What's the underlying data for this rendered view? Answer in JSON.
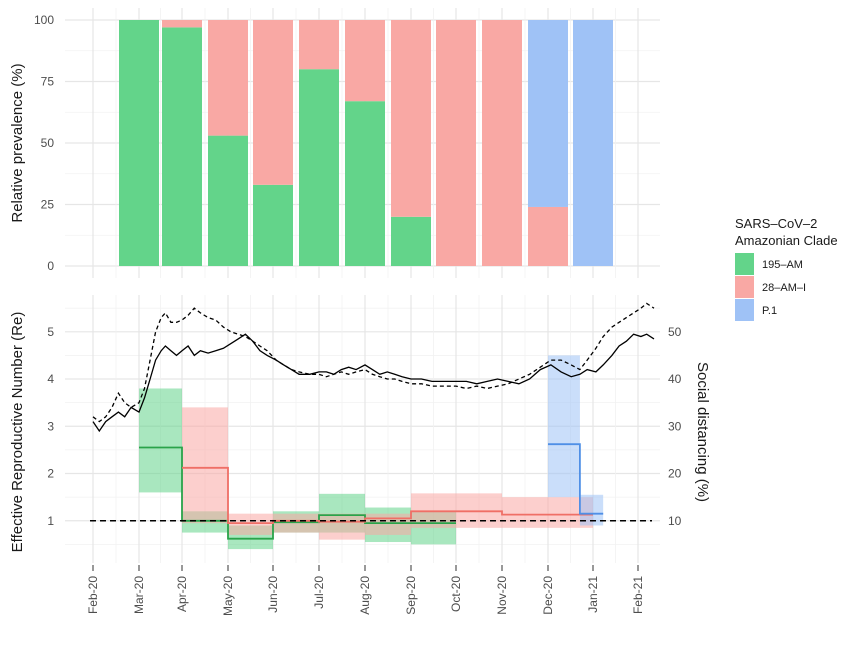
{
  "chart_data": [
    {
      "type": "bar",
      "panel": "top",
      "stacked": true,
      "ylabel": "Relative prevalence (%)",
      "ylim": [
        0,
        100
      ],
      "yticks": [
        0,
        25,
        50,
        75,
        100
      ],
      "categories": [
        "Mar-20",
        "Apr-20",
        "May-20",
        "Jun-20",
        "Jul-20",
        "Aug-20",
        "Sep-20",
        "Oct-20",
        "Nov-20",
        "Dec-20",
        "Jan-21"
      ],
      "series": [
        {
          "name": "195–AM",
          "color": "#63d48a",
          "values": [
            100,
            97,
            53,
            33,
            80,
            67,
            20,
            0,
            0,
            0,
            0
          ]
        },
        {
          "name": "28–AM–I",
          "color": "#f9a8a4",
          "values": [
            0,
            3,
            47,
            67,
            20,
            33,
            80,
            100,
            100,
            24,
            0
          ]
        },
        {
          "name": "P.1",
          "color": "#9fc2f6",
          "values": [
            0,
            0,
            0,
            0,
            0,
            0,
            0,
            0,
            0,
            76,
            100
          ]
        }
      ],
      "grid": true,
      "legend": {
        "title_line1": "SARS–CoV–2",
        "title_line2": "Amazonian Clade",
        "placement": "right",
        "entries": [
          "195–AM",
          "28–AM–I",
          "P.1"
        ]
      }
    },
    {
      "type": "line",
      "panel": "bottom",
      "ylabel": "Effective Reproductive Number (Re)",
      "ylabel_right": "Social distancing (%)",
      "ylim": [
        0,
        5.8
      ],
      "yticks": [
        1,
        2,
        3,
        4,
        5
      ],
      "ylim_right": [
        0,
        58
      ],
      "yticks_right": [
        10,
        20,
        30,
        40,
        50
      ],
      "xticks": [
        "Feb-20",
        "Mar-20",
        "Apr-20",
        "May-20",
        "Jun-20",
        "Jul-20",
        "Aug-20",
        "Sep-20",
        "Oct-20",
        "Nov-20",
        "Dec-20",
        "Jan-21",
        "Feb-21"
      ],
      "reference_line": {
        "y": 1,
        "style": "dashed"
      },
      "re_series": [
        {
          "name": "195–AM",
          "color": "#2aa34a",
          "band_color": "#63d48a",
          "segments": [
            {
              "start": "2020-03-01",
              "end": "2020-04-01",
              "re": 2.55,
              "lo": 1.6,
              "hi": 3.8
            },
            {
              "start": "2020-04-01",
              "end": "2020-05-01",
              "re": 1.0,
              "lo": 0.75,
              "hi": 1.2
            },
            {
              "start": "2020-05-01",
              "end": "2020-06-01",
              "re": 0.62,
              "lo": 0.4,
              "hi": 0.9
            },
            {
              "start": "2020-06-01",
              "end": "2020-07-01",
              "re": 0.97,
              "lo": 0.75,
              "hi": 1.2
            },
            {
              "start": "2020-07-01",
              "end": "2020-08-01",
              "re": 1.12,
              "lo": 0.75,
              "hi": 1.57
            },
            {
              "start": "2020-08-01",
              "end": "2020-09-01",
              "re": 0.95,
              "lo": 0.55,
              "hi": 1.28
            },
            {
              "start": "2020-09-01",
              "end": "2020-10-01",
              "re": 0.95,
              "lo": 0.5,
              "hi": 1.2
            }
          ]
        },
        {
          "name": "28–AM–I",
          "color": "#ef6f66",
          "band_color": "#f9a8a4",
          "segments": [
            {
              "start": "2020-04-01",
              "end": "2020-05-01",
              "re": 2.12,
              "lo": 0.95,
              "hi": 3.4
            },
            {
              "start": "2020-05-01",
              "end": "2020-06-01",
              "re": 0.95,
              "lo": 0.7,
              "hi": 1.15
            },
            {
              "start": "2020-06-01",
              "end": "2020-07-01",
              "re": 1.0,
              "lo": 0.75,
              "hi": 1.15
            },
            {
              "start": "2020-07-01",
              "end": "2020-08-01",
              "re": 0.98,
              "lo": 0.6,
              "hi": 1.15
            },
            {
              "start": "2020-08-01",
              "end": "2020-09-01",
              "re": 1.05,
              "lo": 0.7,
              "hi": 1.15
            },
            {
              "start": "2020-09-01",
              "end": "2020-11-01",
              "re": 1.2,
              "lo": 0.85,
              "hi": 1.58
            },
            {
              "start": "2020-11-01",
              "end": "2021-01-01",
              "re": 1.13,
              "lo": 0.85,
              "hi": 1.5
            }
          ]
        },
        {
          "name": "P.1",
          "color": "#4f8fe6",
          "band_color": "#9fc2f6",
          "segments": [
            {
              "start": "2020-12-01",
              "end": "2020-12-23",
              "re": 2.62,
              "lo": 1.5,
              "hi": 4.5
            },
            {
              "start": "2020-12-23",
              "end": "2021-01-08",
              "re": 1.15,
              "lo": 0.9,
              "hi": 1.55
            }
          ]
        }
      ],
      "social_distancing": {
        "axis": "right",
        "color": "#000000",
        "solid": [
          [
            "2020-02-01",
            31
          ],
          [
            "2020-02-05",
            29
          ],
          [
            "2020-02-09",
            31
          ],
          [
            "2020-02-13",
            32
          ],
          [
            "2020-02-17",
            33
          ],
          [
            "2020-02-21",
            32
          ],
          [
            "2020-02-25",
            34
          ],
          [
            "2020-03-01",
            33
          ],
          [
            "2020-03-05",
            36
          ],
          [
            "2020-03-09",
            40
          ],
          [
            "2020-03-13",
            44
          ],
          [
            "2020-03-17",
            46
          ],
          [
            "2020-03-20",
            47
          ],
          [
            "2020-03-24",
            46
          ],
          [
            "2020-03-28",
            45
          ],
          [
            "2020-04-01",
            46
          ],
          [
            "2020-04-05",
            47
          ],
          [
            "2020-04-09",
            45
          ],
          [
            "2020-04-13",
            46
          ],
          [
            "2020-04-18",
            45.5
          ],
          [
            "2020-04-23",
            46
          ],
          [
            "2020-04-28",
            46.5
          ],
          [
            "2020-05-03",
            47.5
          ],
          [
            "2020-05-08",
            48.5
          ],
          [
            "2020-05-13",
            49.5
          ],
          [
            "2020-05-18",
            48
          ],
          [
            "2020-05-23",
            46
          ],
          [
            "2020-05-28",
            45
          ],
          [
            "2020-06-03",
            44
          ],
          [
            "2020-06-08",
            43
          ],
          [
            "2020-06-13",
            42
          ],
          [
            "2020-06-18",
            41
          ],
          [
            "2020-06-25",
            41
          ],
          [
            "2020-07-01",
            41.5
          ],
          [
            "2020-07-06",
            41.5
          ],
          [
            "2020-07-11",
            41
          ],
          [
            "2020-07-16",
            42
          ],
          [
            "2020-07-21",
            42.5
          ],
          [
            "2020-07-26",
            42
          ],
          [
            "2020-08-01",
            43
          ],
          [
            "2020-08-06",
            42
          ],
          [
            "2020-08-11",
            41
          ],
          [
            "2020-08-16",
            41.5
          ],
          [
            "2020-08-21",
            41
          ],
          [
            "2020-08-26",
            40.5
          ],
          [
            "2020-09-01",
            40
          ],
          [
            "2020-09-08",
            40
          ],
          [
            "2020-09-15",
            39.5
          ],
          [
            "2020-09-22",
            39.5
          ],
          [
            "2020-10-01",
            39.5
          ],
          [
            "2020-10-08",
            39.5
          ],
          [
            "2020-10-15",
            39
          ],
          [
            "2020-10-22",
            39.5
          ],
          [
            "2020-10-29",
            40
          ],
          [
            "2020-11-05",
            39.5
          ],
          [
            "2020-11-12",
            39
          ],
          [
            "2020-11-19",
            40
          ],
          [
            "2020-11-26",
            42
          ],
          [
            "2020-12-03",
            43
          ],
          [
            "2020-12-10",
            41.5
          ],
          [
            "2020-12-17",
            40.5
          ],
          [
            "2020-12-23",
            41
          ],
          [
            "2020-12-28",
            42
          ],
          [
            "2021-01-03",
            41.5
          ],
          [
            "2021-01-08",
            43
          ],
          [
            "2021-01-14",
            45
          ],
          [
            "2021-01-19",
            47
          ],
          [
            "2021-01-24",
            48
          ],
          [
            "2021-01-29",
            49.5
          ],
          [
            "2021-02-03",
            49
          ],
          [
            "2021-02-07",
            49.5
          ],
          [
            "2021-02-12",
            48.5
          ]
        ],
        "dashed": [
          [
            "2020-02-01",
            32
          ],
          [
            "2020-02-05",
            31
          ],
          [
            "2020-02-09",
            32
          ],
          [
            "2020-02-13",
            34
          ],
          [
            "2020-02-17",
            37
          ],
          [
            "2020-02-21",
            35
          ],
          [
            "2020-02-25",
            34
          ],
          [
            "2020-03-01",
            35
          ],
          [
            "2020-03-05",
            38
          ],
          [
            "2020-03-09",
            44
          ],
          [
            "2020-03-13",
            50
          ],
          [
            "2020-03-17",
            53
          ],
          [
            "2020-03-20",
            54
          ],
          [
            "2020-03-24",
            52
          ],
          [
            "2020-03-28",
            52
          ],
          [
            "2020-04-01",
            52.5
          ],
          [
            "2020-04-05",
            53.5
          ],
          [
            "2020-04-09",
            55
          ],
          [
            "2020-04-13",
            54
          ],
          [
            "2020-04-18",
            53
          ],
          [
            "2020-04-23",
            52.5
          ],
          [
            "2020-04-28",
            51
          ],
          [
            "2020-05-03",
            50
          ],
          [
            "2020-05-08",
            49.5
          ],
          [
            "2020-05-13",
            49
          ],
          [
            "2020-05-18",
            48
          ],
          [
            "2020-05-23",
            47
          ],
          [
            "2020-05-28",
            46
          ],
          [
            "2020-06-03",
            44
          ],
          [
            "2020-06-08",
            43
          ],
          [
            "2020-06-13",
            42
          ],
          [
            "2020-06-18",
            41.5
          ],
          [
            "2020-06-25",
            41
          ],
          [
            "2020-07-01",
            41
          ],
          [
            "2020-07-06",
            40.5
          ],
          [
            "2020-07-11",
            41
          ],
          [
            "2020-07-16",
            41.5
          ],
          [
            "2020-07-21",
            41
          ],
          [
            "2020-07-26",
            41.5
          ],
          [
            "2020-08-01",
            42
          ],
          [
            "2020-08-06",
            41
          ],
          [
            "2020-08-11",
            40.5
          ],
          [
            "2020-08-16",
            40
          ],
          [
            "2020-08-21",
            40
          ],
          [
            "2020-08-26",
            39.5
          ],
          [
            "2020-09-01",
            39
          ],
          [
            "2020-09-08",
            39
          ],
          [
            "2020-09-15",
            38.5
          ],
          [
            "2020-09-22",
            38.5
          ],
          [
            "2020-10-01",
            38.5
          ],
          [
            "2020-10-08",
            38
          ],
          [
            "2020-10-15",
            38.5
          ],
          [
            "2020-10-22",
            38
          ],
          [
            "2020-10-29",
            38.5
          ],
          [
            "2020-11-05",
            39
          ],
          [
            "2020-11-12",
            40
          ],
          [
            "2020-11-19",
            41
          ],
          [
            "2020-11-26",
            42.5
          ],
          [
            "2020-12-03",
            44
          ],
          [
            "2020-12-10",
            44
          ],
          [
            "2020-12-17",
            43
          ],
          [
            "2020-12-23",
            42
          ],
          [
            "2020-12-28",
            44
          ],
          [
            "2021-01-03",
            46.5
          ],
          [
            "2021-01-08",
            49
          ],
          [
            "2021-01-14",
            51
          ],
          [
            "2021-01-19",
            52
          ],
          [
            "2021-01-24",
            53
          ],
          [
            "2021-01-29",
            54
          ],
          [
            "2021-02-03",
            55
          ],
          [
            "2021-02-07",
            56
          ],
          [
            "2021-02-12",
            55
          ]
        ]
      },
      "grid": true
    }
  ]
}
